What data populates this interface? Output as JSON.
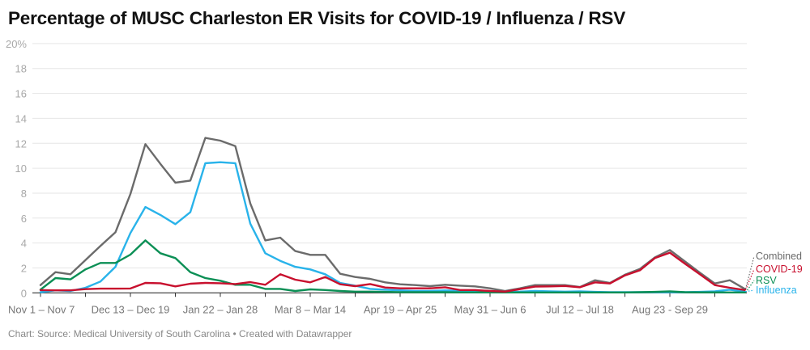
{
  "title": "Percentage of MUSC Charleston ER Visits for COVID-19 / Influenza / RSV",
  "footer": "Chart: Source: Medical University of South Carolina • Created with Datawrapper",
  "chart_data": {
    "type": "line",
    "title": "Percentage of MUSC Charleston ER Visits for COVID-19 / Influenza / RSV",
    "xlabel": "",
    "ylabel": "",
    "ylim": [
      0,
      20
    ],
    "yticks": [
      0,
      2,
      4,
      6,
      8,
      10,
      12,
      14,
      16,
      18,
      20
    ],
    "ytick_labels": [
      "0",
      "2",
      "4",
      "6",
      "8",
      "10",
      "12",
      "14",
      "16",
      "18",
      "20%"
    ],
    "grid": true,
    "n_weeks": 48,
    "x_tick_every": 3,
    "x_labels": [
      {
        "week_index": 0,
        "label": "Nov 1 – Nov 7"
      },
      {
        "week_index": 6,
        "label": "Dec 13 – Dec 19"
      },
      {
        "week_index": 12,
        "label": "Jan 22 – Jan 28"
      },
      {
        "week_index": 18,
        "label": "Mar 8 – Mar 14"
      },
      {
        "week_index": 24,
        "label": "Apr 19 – Apr 25"
      },
      {
        "week_index": 30,
        "label": "May 31 – Jun 6"
      },
      {
        "week_index": 36,
        "label": "Jul 12 – Jul 18"
      },
      {
        "week_index": 42,
        "label": "Aug 23 - Sep 29"
      }
    ],
    "legend_placement": "right (inline line-end labels)",
    "series": [
      {
        "name": "Combined",
        "color": "#6b6b6b",
        "values": [
          0.62,
          1.66,
          1.49,
          2.63,
          3.76,
          4.86,
          7.93,
          11.93,
          10.35,
          8.84,
          9.01,
          12.43,
          12.21,
          11.78,
          7.17,
          4.21,
          4.43,
          3.35,
          3.05,
          3.05,
          1.53,
          1.27,
          1.12,
          0.84,
          0.69,
          0.62,
          0.54,
          0.65,
          0.58,
          0.52,
          0.36,
          0.15,
          0.36,
          0.62,
          0.62,
          0.62,
          0.47,
          1.01,
          0.8,
          1.45,
          1.92,
          2.85,
          3.44,
          2.53,
          1.62,
          0.75,
          1.01,
          0.32
        ]
      },
      {
        "name": "COVID-19",
        "color": "#c8102e",
        "values": [
          0.22,
          0.2,
          0.2,
          0.3,
          0.34,
          0.34,
          0.35,
          0.8,
          0.77,
          0.52,
          0.73,
          0.8,
          0.77,
          0.71,
          0.86,
          0.65,
          1.49,
          1.06,
          0.84,
          1.27,
          0.69,
          0.54,
          0.71,
          0.43,
          0.36,
          0.36,
          0.36,
          0.45,
          0.23,
          0.23,
          0.15,
          0.1,
          0.3,
          0.5,
          0.52,
          0.55,
          0.45,
          0.84,
          0.75,
          1.4,
          1.81,
          2.79,
          3.22,
          2.35,
          1.49,
          0.62,
          0.41,
          0.23
        ]
      },
      {
        "name": "RSV",
        "color": "#0b8f55",
        "values": [
          0.26,
          1.19,
          1.08,
          1.88,
          2.4,
          2.4,
          3.07,
          4.21,
          3.18,
          2.79,
          1.66,
          1.19,
          0.97,
          0.65,
          0.65,
          0.32,
          0.32,
          0.15,
          0.28,
          0.23,
          0.15,
          0.1,
          0.1,
          0.08,
          0.06,
          0.05,
          0.05,
          0.05,
          0.04,
          0.04,
          0.03,
          0.03,
          0.03,
          0.03,
          0.03,
          0.03,
          0.03,
          0.03,
          0.03,
          0.03,
          0.05,
          0.08,
          0.12,
          0.05,
          0.04,
          0.04,
          0.03,
          0.03
        ]
      },
      {
        "name": "Influenza",
        "color": "#29b3ea",
        "values": [
          0.05,
          0.2,
          0.15,
          0.41,
          0.91,
          2.09,
          4.8,
          6.89,
          6.25,
          5.51,
          6.48,
          10.4,
          10.48,
          10.4,
          5.55,
          3.18,
          2.57,
          2.09,
          1.88,
          1.49,
          0.8,
          0.58,
          0.32,
          0.25,
          0.2,
          0.15,
          0.15,
          0.2,
          0.15,
          0.12,
          0.1,
          0.08,
          0.1,
          0.15,
          0.12,
          0.1,
          0.12,
          0.08,
          0.05,
          0.05,
          0.05,
          0.05,
          0.05,
          0.05,
          0.08,
          0.12,
          0.25,
          0.1
        ]
      }
    ]
  }
}
